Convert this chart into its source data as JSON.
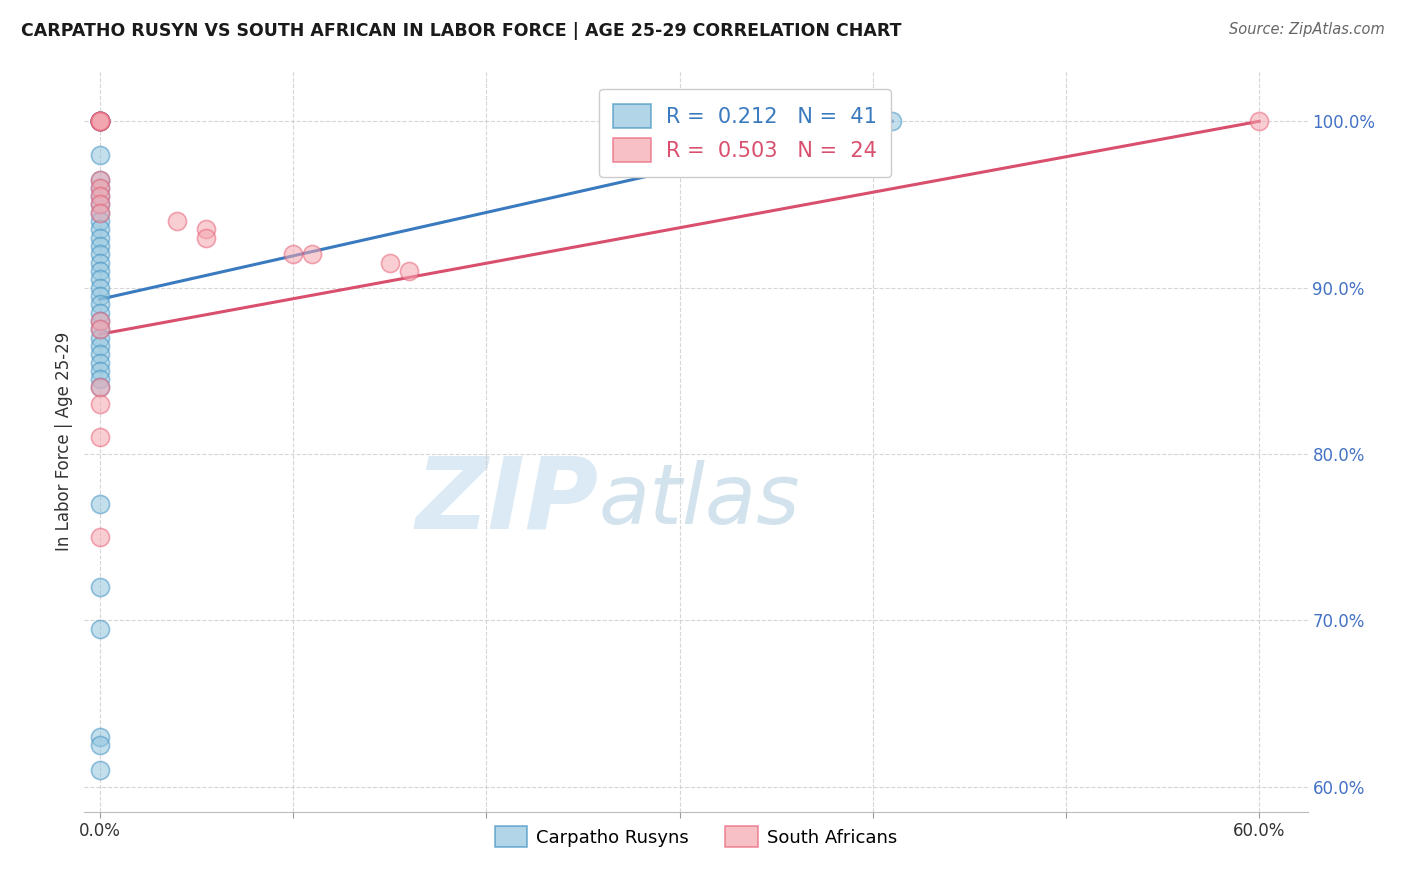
{
  "title": "CARPATHO RUSYN VS SOUTH AFRICAN IN LABOR FORCE | AGE 25-29 CORRELATION CHART",
  "source": "Source: ZipAtlas.com",
  "ylabel": "In Labor Force | Age 25-29",
  "xlim": [
    -0.008,
    0.625
  ],
  "ylim": [
    0.585,
    1.03
  ],
  "yticks": [
    0.6,
    0.7,
    0.8,
    0.9,
    1.0
  ],
  "ytick_labels": [
    "60.0%",
    "70.0%",
    "80.0%",
    "90.0%",
    "100.0%"
  ],
  "xticks": [
    0.0,
    0.1,
    0.2,
    0.3,
    0.4,
    0.5,
    0.6
  ],
  "xtick_labels": [
    "0.0%",
    "",
    "",
    "",
    "",
    "",
    "60.0%"
  ],
  "blue_color": "#92c5de",
  "pink_color": "#f4a6b0",
  "blue_edge_color": "#4393c3",
  "pink_edge_color": "#e8637a",
  "blue_line_color": "#3a7abf",
  "pink_line_color": "#d94f6e",
  "blue_line_x0": 0.0,
  "blue_line_y0": 0.893,
  "blue_line_x1": 0.41,
  "blue_line_y1": 1.0,
  "pink_line_x0": 0.0,
  "pink_line_y0": 0.872,
  "pink_line_x1": 0.6,
  "pink_line_y1": 1.0,
  "blue_x": [
    0.0,
    0.0,
    0.0,
    0.0,
    0.0,
    0.0,
    0.0,
    0.0,
    0.0,
    0.0,
    0.0,
    0.0,
    0.0,
    0.0,
    0.0,
    0.0,
    0.0,
    0.0,
    0.0,
    0.0,
    0.0,
    0.0,
    0.0,
    0.0,
    0.0,
    0.0,
    0.0,
    0.0,
    0.0,
    0.0,
    0.0,
    0.0,
    0.0,
    0.0,
    0.0,
    0.0,
    0.0,
    0.0,
    0.0,
    0.0,
    0.41
  ],
  "blue_y": [
    1.0,
    1.0,
    1.0,
    1.0,
    1.0,
    1.0,
    1.0,
    0.98,
    0.965,
    0.96,
    0.955,
    0.95,
    0.945,
    0.94,
    0.935,
    0.93,
    0.925,
    0.92,
    0.915,
    0.91,
    0.905,
    0.9,
    0.895,
    0.89,
    0.885,
    0.88,
    0.875,
    0.87,
    0.865,
    0.86,
    0.855,
    0.85,
    0.845,
    0.84,
    0.77,
    0.72,
    0.695,
    0.63,
    0.625,
    0.61,
    1.0
  ],
  "pink_x": [
    0.0,
    0.0,
    0.0,
    0.0,
    0.0,
    0.0,
    0.0,
    0.0,
    0.0,
    0.0,
    0.04,
    0.055,
    0.055,
    0.1,
    0.11,
    0.15,
    0.16,
    0.0,
    0.0,
    0.0,
    0.0,
    0.0,
    0.0,
    0.6
  ],
  "pink_y": [
    1.0,
    1.0,
    1.0,
    1.0,
    1.0,
    0.965,
    0.96,
    0.955,
    0.95,
    0.945,
    0.94,
    0.935,
    0.93,
    0.92,
    0.92,
    0.915,
    0.91,
    0.88,
    0.875,
    0.84,
    0.83,
    0.81,
    0.75,
    1.0
  ],
  "watermark_zip": "ZIP",
  "watermark_atlas": "atlas",
  "background_color": "#ffffff",
  "grid_color": "#cccccc",
  "legend_blue_text": "R =  0.212   N =  41",
  "legend_pink_text": "R =  0.503   N =  24",
  "bottom_legend_blue": "Carpatho Rusyns",
  "bottom_legend_pink": "South Africans"
}
